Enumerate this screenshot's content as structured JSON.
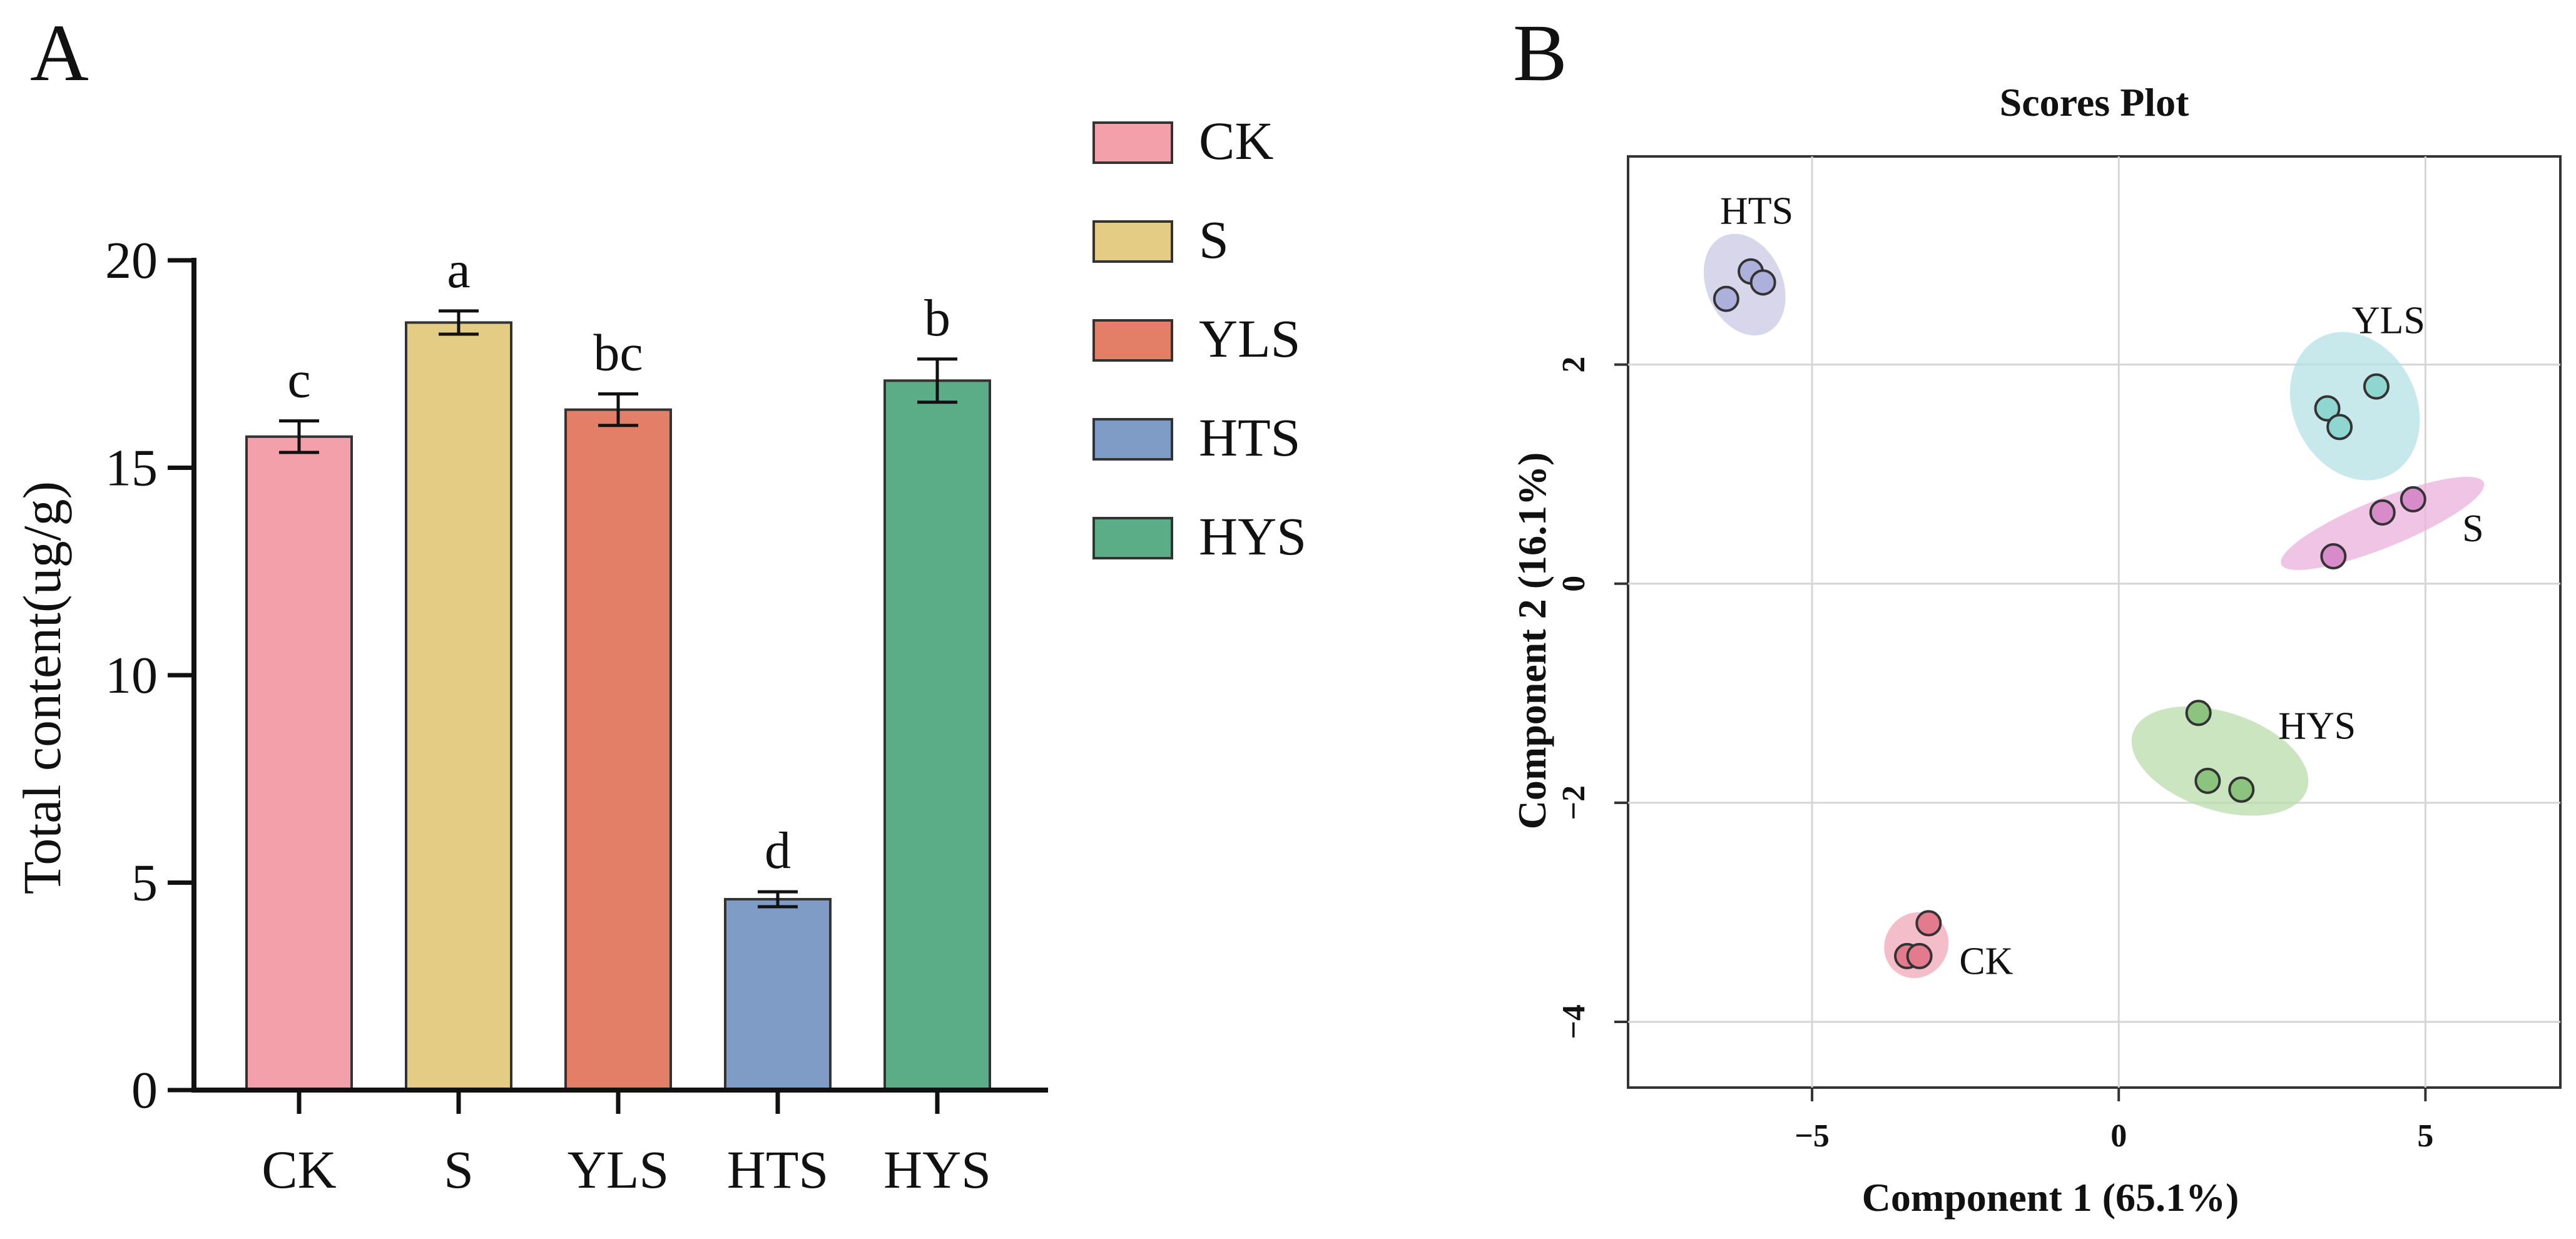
{
  "panels": {
    "a_label": "A",
    "b_label": "B"
  },
  "chart_data": [
    {
      "type": "bar",
      "panel": "A",
      "title": "",
      "xlabel": "",
      "ylabel": "Total content(ug/g)",
      "ylim": [
        0,
        20
      ],
      "yticks": [
        0,
        5,
        10,
        15,
        20
      ],
      "categories": [
        "CK",
        "S",
        "YLS",
        "HTS",
        "HYS"
      ],
      "values": [
        15.75,
        18.5,
        16.4,
        4.6,
        17.1
      ],
      "errors": [
        0.38,
        0.28,
        0.38,
        0.18,
        0.52
      ],
      "significance": [
        "c",
        "a",
        "bc",
        "d",
        "b"
      ],
      "colors": [
        "#f4a0aa",
        "#e4cc84",
        "#e37f66",
        "#7f9cc7",
        "#5aad87"
      ],
      "legend": {
        "placement": "right",
        "entries": [
          "CK",
          "S",
          "YLS",
          "HTS",
          "HYS"
        ]
      }
    },
    {
      "type": "scatter",
      "panel": "B",
      "title": "Scores Plot",
      "xlabel": "Component 1 (65.1%)",
      "ylabel": "Component 2 (16.1%)",
      "xlim": [
        -8,
        7.2
      ],
      "ylim": [
        -4.6,
        3.9
      ],
      "xticks": [
        -5,
        0,
        5
      ],
      "xtick_labels": [
        "−5",
        "0",
        "5"
      ],
      "yticks": [
        -4,
        -2,
        0,
        2
      ],
      "ytick_labels": [
        "−4",
        "−2",
        "0",
        "2"
      ],
      "grid": true,
      "groups": [
        {
          "name": "HTS",
          "fill": "#aeb0dc",
          "ellipse": "#c9c8e4",
          "points": [
            [
              -6.4,
              2.6
            ],
            [
              -6.0,
              2.85
            ],
            [
              -5.8,
              2.75
            ]
          ],
          "ellipse_params": {
            "cx": -6.1,
            "cy": 2.73,
            "rx": 0.62,
            "ry": 0.22,
            "angle": 24
          },
          "label_anchor": [
            -6.5,
            3.4
          ]
        },
        {
          "name": "YLS",
          "fill": "#8fd6d1",
          "ellipse": "#b5e1e4",
          "points": [
            [
              3.4,
              1.6
            ],
            [
              3.6,
              1.43
            ],
            [
              4.2,
              1.8
            ]
          ],
          "ellipse_params": {
            "cx": 3.85,
            "cy": 1.62,
            "rx": 1.0,
            "ry": 0.32,
            "angle": 27
          },
          "label_anchor": [
            3.8,
            2.4
          ]
        },
        {
          "name": "S",
          "fill": "#d78bc8",
          "ellipse": "#ebb0dc",
          "points": [
            [
              3.5,
              0.25
            ],
            [
              4.3,
              0.65
            ],
            [
              4.8,
              0.77
            ]
          ],
          "ellipse_params": {
            "cx": 4.3,
            "cy": 0.55,
            "rx": 1.78,
            "ry": 0.1,
            "angle": 22
          },
          "label_anchor": [
            5.6,
            0.5
          ]
        },
        {
          "name": "HYS",
          "fill": "#8cc47f",
          "ellipse": "#b8dcab",
          "points": [
            [
              1.3,
              -1.18
            ],
            [
              1.45,
              -1.8
            ],
            [
              2.0,
              -1.88
            ]
          ],
          "ellipse_params": {
            "cx": 1.65,
            "cy": -1.62,
            "rx": 0.8,
            "ry": 0.38,
            "angle": 72
          },
          "label_anchor": [
            2.6,
            -1.3
          ]
        },
        {
          "name": "CK",
          "fill": "#e47a8e",
          "ellipse": "#f0a7b8",
          "points": [
            [
              -3.45,
              -3.4
            ],
            [
              -3.25,
              -3.4
            ],
            [
              -3.1,
              -3.1
            ]
          ],
          "ellipse_params": {
            "cx": -3.3,
            "cy": -3.3,
            "rx": 0.55,
            "ry": 0.13,
            "angle": 54
          },
          "label_anchor": [
            -2.6,
            -3.45
          ]
        }
      ]
    }
  ]
}
